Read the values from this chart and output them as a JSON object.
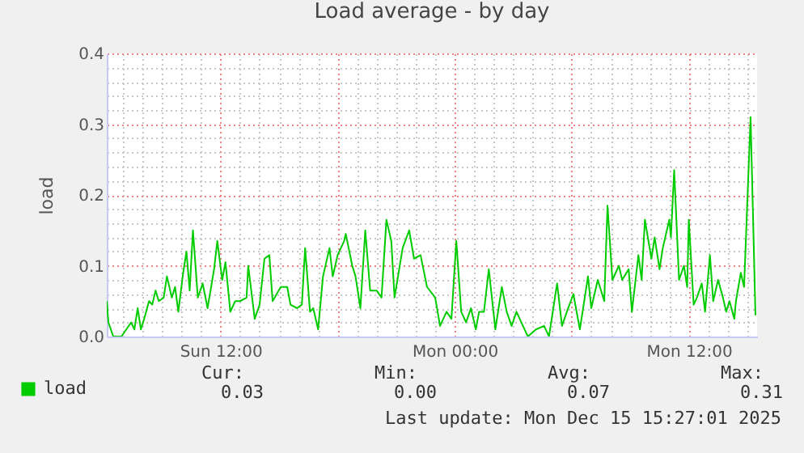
{
  "chart_data": {
    "type": "line",
    "title": "Load average - by day",
    "ylabel": "load",
    "legend": "bottom",
    "grid": true,
    "xlim": [
      "2025-12-14T06:10",
      "2025-12-15T15:30"
    ],
    "xticks": [
      {
        "value": "2025-12-14T07:00",
        "label": null
      },
      {
        "value": "2025-12-14T08:00",
        "label": null
      },
      {
        "value": "2025-12-14T09:00",
        "label": null
      },
      {
        "value": "2025-12-14T10:00",
        "label": null
      },
      {
        "value": "2025-12-14T11:00",
        "label": null
      },
      {
        "value": "2025-12-14T12:00",
        "label": "Sun 12:00"
      },
      {
        "value": "2025-12-14T13:00",
        "label": null
      },
      {
        "value": "2025-12-14T14:00",
        "label": null
      },
      {
        "value": "2025-12-14T15:00",
        "label": null
      },
      {
        "value": "2025-12-14T16:00",
        "label": null
      },
      {
        "value": "2025-12-14T17:00",
        "label": null
      },
      {
        "value": "2025-12-14T18:00",
        "label": null
      },
      {
        "value": "2025-12-14T19:00",
        "label": null
      },
      {
        "value": "2025-12-14T20:00",
        "label": null
      },
      {
        "value": "2025-12-14T21:00",
        "label": null
      },
      {
        "value": "2025-12-14T22:00",
        "label": null
      },
      {
        "value": "2025-12-14T23:00",
        "label": null
      },
      {
        "value": "2025-12-15T00:00",
        "label": "Mon 00:00"
      },
      {
        "value": "2025-12-15T01:00",
        "label": null
      },
      {
        "value": "2025-12-15T02:00",
        "label": null
      },
      {
        "value": "2025-12-15T03:00",
        "label": null
      },
      {
        "value": "2025-12-15T04:00",
        "label": null
      },
      {
        "value": "2025-12-15T05:00",
        "label": null
      },
      {
        "value": "2025-12-15T06:00",
        "label": null
      },
      {
        "value": "2025-12-15T07:00",
        "label": null
      },
      {
        "value": "2025-12-15T08:00",
        "label": null
      },
      {
        "value": "2025-12-15T09:00",
        "label": null
      },
      {
        "value": "2025-12-15T10:00",
        "label": null
      },
      {
        "value": "2025-12-15T11:00",
        "label": null
      },
      {
        "value": "2025-12-15T12:00",
        "label": "Mon 12:00"
      },
      {
        "value": "2025-12-15T13:00",
        "label": null
      },
      {
        "value": "2025-12-15T14:00",
        "label": null
      },
      {
        "value": "2025-12-15T15:00",
        "label": null
      }
    ],
    "ylim": [
      0,
      0.4
    ],
    "yticks": [
      {
        "value": 0,
        "label": "0.0"
      },
      {
        "value": 0.02,
        "label": null
      },
      {
        "value": 0.04,
        "label": null
      },
      {
        "value": 0.06,
        "label": null
      },
      {
        "value": 0.08,
        "label": null
      },
      {
        "value": 0.1,
        "label": "0.1"
      },
      {
        "value": 0.12,
        "label": null
      },
      {
        "value": 0.14,
        "label": null
      },
      {
        "value": 0.16,
        "label": null
      },
      {
        "value": 0.18,
        "label": null
      },
      {
        "value": 0.2,
        "label": "0.2"
      },
      {
        "value": 0.22,
        "label": null
      },
      {
        "value": 0.24,
        "label": null
      },
      {
        "value": 0.26,
        "label": null
      },
      {
        "value": 0.28,
        "label": null
      },
      {
        "value": 0.3,
        "label": "0.3"
      },
      {
        "value": 0.32,
        "label": null
      },
      {
        "value": 0.34,
        "label": null
      },
      {
        "value": 0.36,
        "label": null
      },
      {
        "value": 0.38,
        "label": null
      },
      {
        "value": 0.4,
        "label": "0.4"
      }
    ],
    "series": [
      {
        "name": "load",
        "color": "#00cc00",
        "x": [
          "2025-12-14T06:10",
          "2025-12-14T06:15",
          "2025-12-14T06:30",
          "2025-12-14T06:55",
          "2025-12-14T07:10",
          "2025-12-14T07:25",
          "2025-12-14T07:35",
          "2025-12-14T07:45",
          "2025-12-14T07:55",
          "2025-12-14T08:05",
          "2025-12-14T08:20",
          "2025-12-14T08:30",
          "2025-12-14T08:40",
          "2025-12-14T08:50",
          "2025-12-14T09:05",
          "2025-12-14T09:15",
          "2025-12-14T09:30",
          "2025-12-14T09:40",
          "2025-12-14T09:50",
          "2025-12-14T10:05",
          "2025-12-14T10:15",
          "2025-12-14T10:25",
          "2025-12-14T10:35",
          "2025-12-14T10:50",
          "2025-12-14T11:05",
          "2025-12-14T11:20",
          "2025-12-14T11:40",
          "2025-12-14T11:50",
          "2025-12-14T12:05",
          "2025-12-14T12:15",
          "2025-12-14T12:30",
          "2025-12-14T12:45",
          "2025-12-14T13:00",
          "2025-12-14T13:20",
          "2025-12-14T13:25",
          "2025-12-14T13:45",
          "2025-12-14T14:00",
          "2025-12-14T14:15",
          "2025-12-14T14:30",
          "2025-12-14T14:40",
          "2025-12-14T15:05",
          "2025-12-14T15:25",
          "2025-12-14T15:35",
          "2025-12-14T15:55",
          "2025-12-14T16:10",
          "2025-12-14T16:20",
          "2025-12-14T16:35",
          "2025-12-14T16:45",
          "2025-12-14T17:00",
          "2025-12-14T17:15",
          "2025-12-14T17:35",
          "2025-12-14T17:45",
          "2025-12-14T18:00",
          "2025-12-14T18:20",
          "2025-12-14T18:25",
          "2025-12-14T18:45",
          "2025-12-14T18:55",
          "2025-12-14T19:10",
          "2025-12-14T19:25",
          "2025-12-14T19:40",
          "2025-12-14T20:00",
          "2025-12-14T20:15",
          "2025-12-14T20:30",
          "2025-12-14T20:45",
          "2025-12-14T20:55",
          "2025-12-14T21:20",
          "2025-12-14T21:40",
          "2025-12-14T21:55",
          "2025-12-14T22:15",
          "2025-12-14T22:35",
          "2025-12-14T23:00",
          "2025-12-14T23:15",
          "2025-12-14T23:35",
          "2025-12-14T23:50",
          "2025-12-15T00:05",
          "2025-12-15T00:20",
          "2025-12-15T00:35",
          "2025-12-15T00:50",
          "2025-12-15T01:05",
          "2025-12-15T01:15",
          "2025-12-15T01:30",
          "2025-12-15T01:45",
          "2025-12-15T02:05",
          "2025-12-15T02:25",
          "2025-12-15T02:40",
          "2025-12-15T02:55",
          "2025-12-15T03:10",
          "2025-12-15T03:30",
          "2025-12-15T03:45",
          "2025-12-15T04:10",
          "2025-12-15T04:35",
          "2025-12-15T04:50",
          "2025-12-15T05:15",
          "2025-12-15T05:30",
          "2025-12-15T05:45",
          "2025-12-15T06:05",
          "2025-12-15T06:25",
          "2025-12-15T06:35",
          "2025-12-15T06:50",
          "2025-12-15T07:00",
          "2025-12-15T07:20",
          "2025-12-15T07:40",
          "2025-12-15T07:50",
          "2025-12-15T08:05",
          "2025-12-15T08:25",
          "2025-12-15T08:35",
          "2025-12-15T08:55",
          "2025-12-15T09:05",
          "2025-12-15T09:25",
          "2025-12-15T09:35",
          "2025-12-15T09:45",
          "2025-12-15T10:05",
          "2025-12-15T10:15",
          "2025-12-15T10:30",
          "2025-12-15T10:40",
          "2025-12-15T11:00",
          "2025-12-15T11:05",
          "2025-12-15T11:15",
          "2025-12-15T11:30",
          "2025-12-15T11:45",
          "2025-12-15T11:55",
          "2025-12-15T12:00",
          "2025-12-15T12:15",
          "2025-12-15T12:25",
          "2025-12-15T12:40",
          "2025-12-15T12:50",
          "2025-12-15T13:05",
          "2025-12-15T13:15",
          "2025-12-15T13:30",
          "2025-12-15T13:45",
          "2025-12-15T13:55",
          "2025-12-15T14:05",
          "2025-12-15T14:20",
          "2025-12-15T14:25",
          "2025-12-15T14:40",
          "2025-12-15T14:50",
          "2025-12-15T15:10",
          "2025-12-15T15:25"
        ],
        "values": [
          0.05,
          0.02,
          0,
          0,
          0.01,
          0.02,
          0.01,
          0.04,
          0.01,
          0.025,
          0.05,
          0.045,
          0.065,
          0.05,
          0.055,
          0.085,
          0.055,
          0.07,
          0.035,
          0.09,
          0.12,
          0.065,
          0.15,
          0.055,
          0.075,
          0.04,
          0.095,
          0.135,
          0.08,
          0.105,
          0.035,
          0.05,
          0.05,
          0.055,
          0.1,
          0.025,
          0.045,
          0.11,
          0.115,
          0.05,
          0.07,
          0.07,
          0.045,
          0.04,
          0.045,
          0.125,
          0.035,
          0.04,
          0.01,
          0.085,
          0.125,
          0.085,
          0.115,
          0.135,
          0.145,
          0.1,
          0.085,
          0.04,
          0.15,
          0.065,
          0.065,
          0.055,
          0.165,
          0.135,
          0.055,
          0.125,
          0.15,
          0.11,
          0.115,
          0.07,
          0.055,
          0.015,
          0.035,
          0.025,
          0.135,
          0.035,
          0.02,
          0.04,
          0.01,
          0.035,
          0.035,
          0.095,
          0.01,
          0.07,
          0.035,
          0.015,
          0.035,
          0.015,
          0,
          0.01,
          0.015,
          0,
          0.075,
          0.015,
          0.035,
          0.06,
          0.01,
          0.04,
          0.085,
          0.04,
          0.08,
          0.05,
          0.185,
          0.08,
          0.1,
          0.08,
          0.095,
          0.035,
          0.115,
          0.08,
          0.165,
          0.11,
          0.14,
          0.095,
          0.125,
          0.165,
          0.14,
          0.235,
          0.08,
          0.1,
          0.07,
          0.165,
          0.045,
          0.055,
          0.075,
          0.035,
          0.115,
          0.05,
          0.08,
          0.055,
          0.035,
          0.05,
          0.025,
          0.05,
          0.09,
          0.07,
          0.31,
          0.03
        ]
      }
    ],
    "annotations": [
      "Cur:",
      "0.03",
      "Min:",
      "0.00",
      "Avg:",
      "0.07",
      "Max:",
      "0.31",
      "Last update: Mon Dec 15 15:27:01 2025"
    ]
  }
}
